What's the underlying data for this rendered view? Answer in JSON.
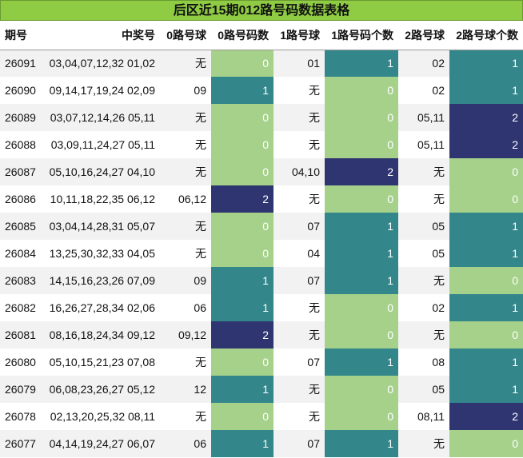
{
  "title": "后区近15期012路号码数据表格",
  "headers": [
    "期号",
    "中奖号",
    "0路号球",
    "0路号码数",
    "1路号球",
    "1路号码个数",
    "2路号球",
    "2路号球个数"
  ],
  "rows": [
    {
      "period": "26091",
      "front": "03,04,07,12,32",
      "back": "01,02",
      "r0": "无",
      "r0n": "0",
      "r1": "01",
      "r1n": "1",
      "r2": "02",
      "r2n": "1"
    },
    {
      "period": "26090",
      "front": "09,14,17,19,24",
      "back": "02,09",
      "r0": "09",
      "r0n": "1",
      "r1": "无",
      "r1n": "0",
      "r2": "02",
      "r2n": "1"
    },
    {
      "period": "26089",
      "front": "03,07,12,14,26",
      "back": "05,11",
      "r0": "无",
      "r0n": "0",
      "r1": "无",
      "r1n": "0",
      "r2": "05,11",
      "r2n": "2"
    },
    {
      "period": "26088",
      "front": "03,09,11,24,27",
      "back": "05,11",
      "r0": "无",
      "r0n": "0",
      "r1": "无",
      "r1n": "0",
      "r2": "05,11",
      "r2n": "2"
    },
    {
      "period": "26087",
      "front": "05,10,16,24,27",
      "back": "04,10",
      "r0": "无",
      "r0n": "0",
      "r1": "04,10",
      "r1n": "2",
      "r2": "无",
      "r2n": "0"
    },
    {
      "period": "26086",
      "front": "10,11,18,22,35",
      "back": "06,12",
      "r0": "06,12",
      "r0n": "2",
      "r1": "无",
      "r1n": "0",
      "r2": "无",
      "r2n": "0"
    },
    {
      "period": "26085",
      "front": "03,04,14,28,31",
      "back": "05,07",
      "r0": "无",
      "r0n": "0",
      "r1": "07",
      "r1n": "1",
      "r2": "05",
      "r2n": "1"
    },
    {
      "period": "26084",
      "front": "13,25,30,32,33",
      "back": "04,05",
      "r0": "无",
      "r0n": "0",
      "r1": "04",
      "r1n": "1",
      "r2": "05",
      "r2n": "1"
    },
    {
      "period": "26083",
      "front": "14,15,16,23,26",
      "back": "07,09",
      "r0": "09",
      "r0n": "1",
      "r1": "07",
      "r1n": "1",
      "r2": "无",
      "r2n": "0"
    },
    {
      "period": "26082",
      "front": "16,26,27,28,34",
      "back": "02,06",
      "r0": "06",
      "r0n": "1",
      "r1": "无",
      "r1n": "0",
      "r2": "02",
      "r2n": "1"
    },
    {
      "period": "26081",
      "front": "08,16,18,24,34",
      "back": "09,12",
      "r0": "09,12",
      "r0n": "2",
      "r1": "无",
      "r1n": "0",
      "r2": "无",
      "r2n": "0"
    },
    {
      "period": "26080",
      "front": "05,10,15,21,23",
      "back": "07,08",
      "r0": "无",
      "r0n": "0",
      "r1": "07",
      "r1n": "1",
      "r2": "08",
      "r2n": "1"
    },
    {
      "period": "26079",
      "front": "06,08,23,26,27",
      "back": "05,12",
      "r0": "12",
      "r0n": "1",
      "r1": "无",
      "r1n": "0",
      "r2": "05",
      "r2n": "1"
    },
    {
      "period": "26078",
      "front": "02,13,20,25,32",
      "back": "08,11",
      "r0": "无",
      "r0n": "0",
      "r1": "无",
      "r1n": "0",
      "r2": "08,11",
      "r2n": "2"
    },
    {
      "period": "26077",
      "front": "04,14,19,24,27",
      "back": "06,07",
      "r0": "06",
      "r0n": "1",
      "r1": "07",
      "r1n": "1",
      "r2": "无",
      "r2n": "0"
    }
  ],
  "colors": {
    "count_0": "#a5d18a",
    "count_1": "#33868a",
    "count_2": "#2e3570",
    "title_bg": "#8fcc44"
  }
}
